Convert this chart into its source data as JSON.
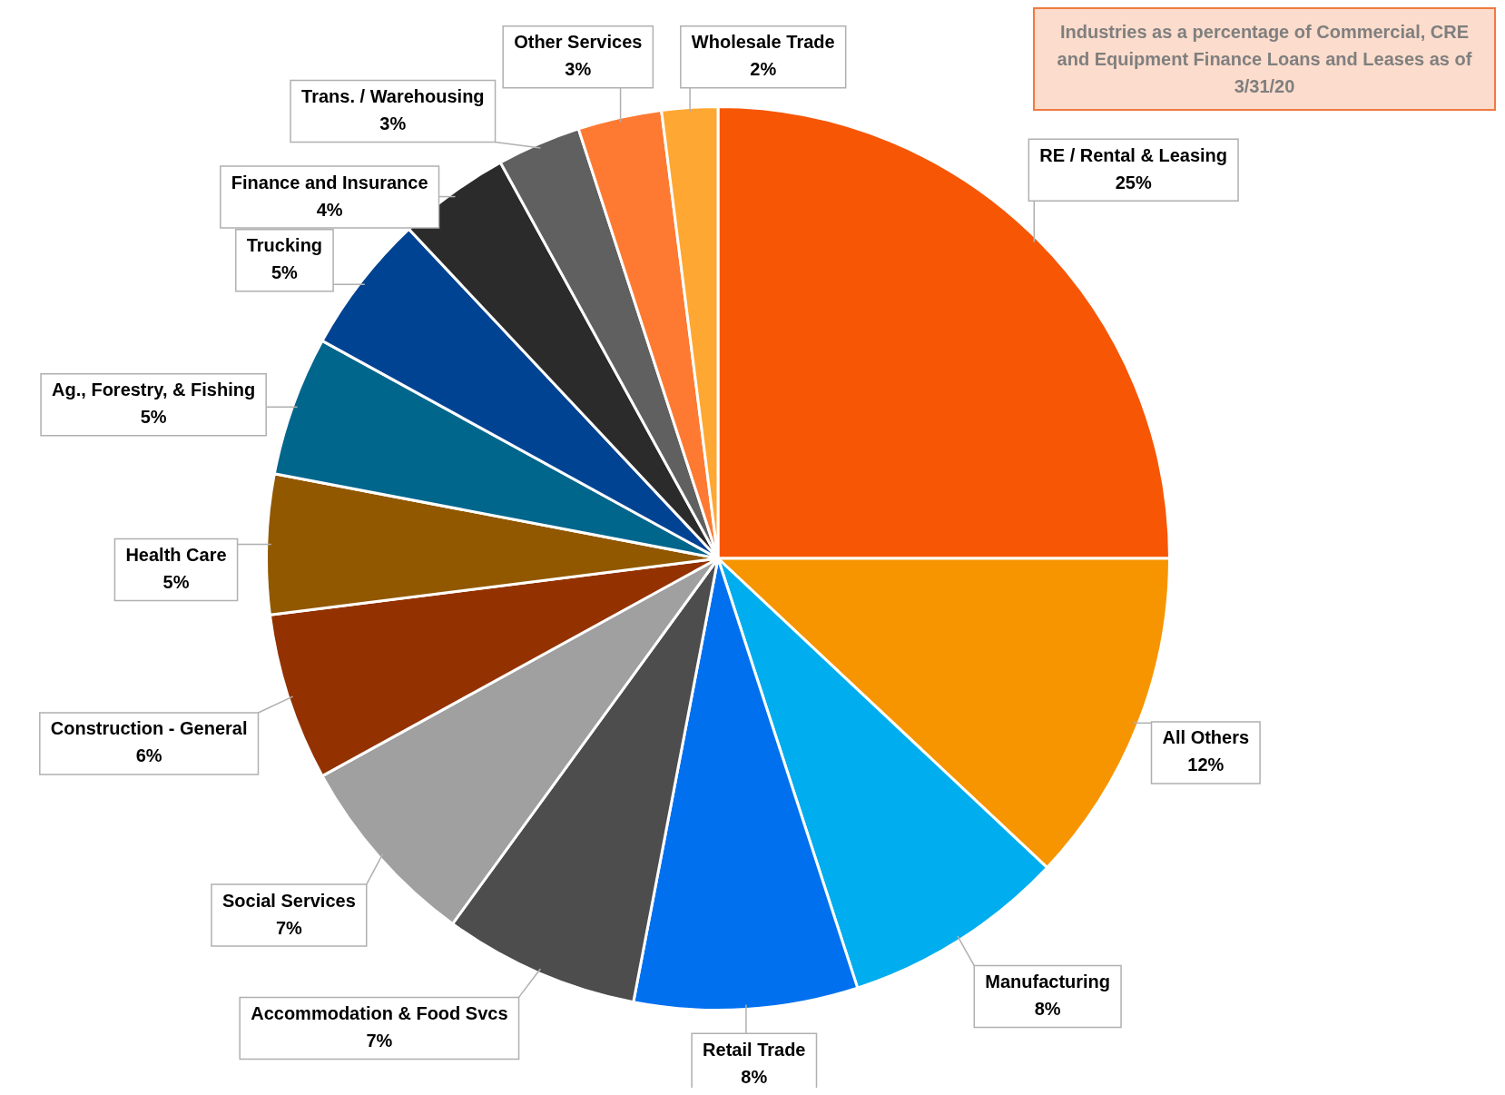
{
  "chart_data": {
    "type": "pie",
    "title": "Industries as a percentage of Commercial, CRE and Equipment Finance Loans and Leases as of 3/31/20",
    "categories": [
      "RE / Rental & Leasing",
      "All Others",
      "Manufacturing",
      "Retail Trade",
      "Accommodation & Food Svcs",
      "Social Services",
      "Construction - General",
      "Health Care",
      "Ag., Forestry, & Fishing",
      "Trucking",
      "Finance and Insurance",
      "Trans. / Warehousing",
      "Other Services",
      "Wholesale Trade"
    ],
    "values": [
      25,
      12,
      8,
      8,
      7,
      7,
      6,
      5,
      5,
      5,
      4,
      3,
      3,
      2
    ],
    "value_labels": [
      "25%",
      "12%",
      "8%",
      "8%",
      "7%",
      "7%",
      "6%",
      "5%",
      "5%",
      "5%",
      "4%",
      "3%",
      "3%",
      "2%"
    ],
    "colors": [
      "#f75605",
      "#f79500",
      "#00adee",
      "#0070ee",
      "#4d4d4d",
      "#a0a0a0",
      "#933200",
      "#915800",
      "#00668c",
      "#004393",
      "#2b2b2b",
      "#606060",
      "#fe7a32",
      "#ffa733"
    ]
  }
}
